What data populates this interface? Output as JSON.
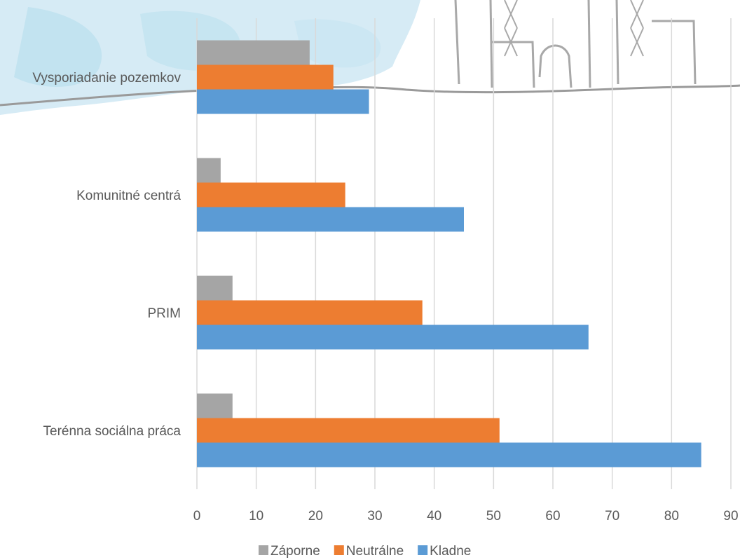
{
  "chart_data": {
    "type": "bar",
    "orientation": "horizontal",
    "categories": [
      "Vysporiadanie pozemkov",
      "Komunitné centrá",
      "PRIM",
      "Terénna sociálna práca"
    ],
    "series": [
      {
        "name": "Záporne",
        "values": [
          19,
          4,
          6,
          6
        ],
        "color": "#a5a5a5"
      },
      {
        "name": "Neutrálne",
        "values": [
          23,
          25,
          38,
          51
        ],
        "color": "#ed7d31"
      },
      {
        "name": "Kladne",
        "values": [
          29,
          45,
          66,
          85
        ],
        "color": "#5b9bd5"
      }
    ],
    "xlim": [
      0,
      90
    ],
    "xticks": [
      0,
      10,
      20,
      30,
      40,
      50,
      60,
      70,
      80,
      90
    ],
    "grid": "vertical",
    "legend": "bottom",
    "gridline_color": "#d9d9d9",
    "text_color": "#595959"
  }
}
